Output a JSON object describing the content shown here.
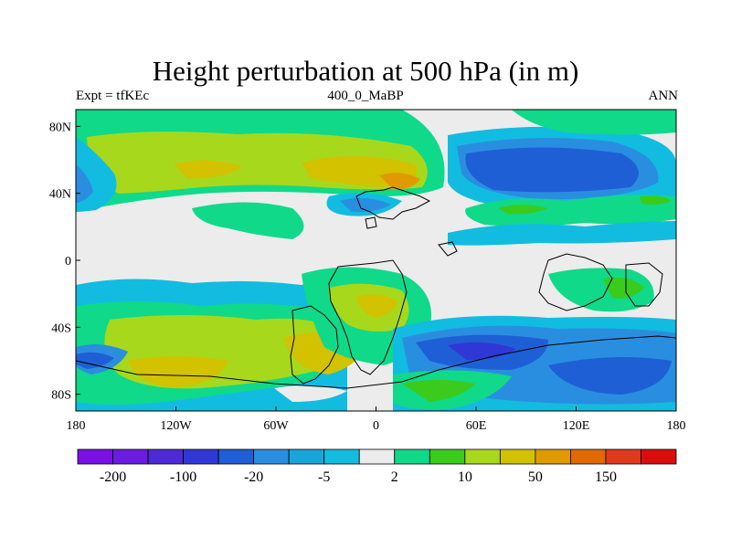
{
  "title": "Height perturbation at 500 hPa (in m)",
  "subtitle_left": "Expt = tfKEc",
  "subtitle_center": "400_0_MaBP",
  "subtitle_right": "ANN",
  "axes": {
    "x_ticks": [
      {
        "label": "180",
        "lon": -180
      },
      {
        "label": "120W",
        "lon": -120
      },
      {
        "label": "60W",
        "lon": -60
      },
      {
        "label": "0",
        "lon": 0
      },
      {
        "label": "60E",
        "lon": 60
      },
      {
        "label": "120E",
        "lon": 120
      },
      {
        "label": "180",
        "lon": 180
      }
    ],
    "y_ticks": [
      {
        "label": "80N",
        "lat": 80
      },
      {
        "label": "40N",
        "lat": 40
      },
      {
        "label": "0",
        "lat": 0
      },
      {
        "label": "40S",
        "lat": -40
      },
      {
        "label": "80S",
        "lat": -80
      }
    ],
    "lon_range": [
      -180,
      180
    ],
    "lat_range": [
      -90,
      90
    ]
  },
  "colorbar": {
    "colors": [
      "#7a10e6",
      "#6a1ce0",
      "#4e2ad6",
      "#2f38d4",
      "#1f5fd6",
      "#2a8ee0",
      "#1aa4dc",
      "#12bce0",
      "#ececec",
      "#10d98a",
      "#3acb1c",
      "#a8d81c",
      "#d2c200",
      "#e09a00",
      "#e06a00",
      "#e03a1c",
      "#dc0c0c"
    ],
    "labels": [
      {
        "text": "-200",
        "boundary": 1
      },
      {
        "text": "-100",
        "boundary": 3
      },
      {
        "text": "-20",
        "boundary": 5
      },
      {
        "text": "-5",
        "boundary": 7
      },
      {
        "text": "2",
        "boundary": 9
      },
      {
        "text": "10",
        "boundary": 11
      },
      {
        "text": "50",
        "boundary": 13
      },
      {
        "text": "150",
        "boundary": 15
      }
    ]
  },
  "field_colors": {
    "background": "#ececec",
    "teal": "#10d98a",
    "green": "#3acb1c",
    "yellowgreen": "#a8d81c",
    "yellow": "#d2c200",
    "orange": "#e09a00",
    "cyan": "#12bce0",
    "lightblue": "#1aa4dc",
    "blue": "#2a8ee0",
    "midblue": "#1f5fd6",
    "darkblue": "#2f38d4"
  }
}
